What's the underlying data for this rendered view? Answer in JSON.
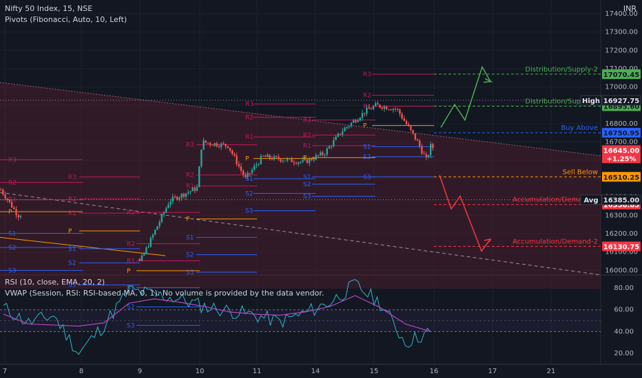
{
  "header": {
    "symbol_line": "Nifty 50 Index, 15, NSE",
    "pivots_line": "Pivots (Fibonacci, Auto, 10, Left)",
    "currency": "INR"
  },
  "rsi_panel": {
    "line1": "RSI (10, close, EMA, 20, 2)",
    "line2": "VWAP (Session, RSI: RSI-based MA, 0, 1): No volume is provided by the data vendor."
  },
  "chart_data": {
    "type": "line",
    "price_axis": {
      "ylim": [
        15975,
        17475
      ],
      "ticks": [
        "17400.00",
        "17300.00",
        "17200.00",
        "17100.00",
        "17000.00",
        "16900.00",
        "16800.00",
        "16700.00",
        "16600.00",
        "16500.00",
        "16400.00",
        "16300.00",
        "16200.00",
        "16100.00",
        "16000.00"
      ],
      "tick_values": [
        17400,
        17300,
        17200,
        17100,
        17000,
        16900,
        16800,
        16700,
        16600,
        16500,
        16400,
        16300,
        16200,
        16100,
        16000
      ]
    },
    "rsi_axis": {
      "ylim": [
        10,
        92
      ],
      "ticks": [
        "80.00",
        "60.00",
        "40.00",
        "20.00"
      ],
      "tick_values": [
        80,
        60,
        40,
        20
      ],
      "bands": [
        60,
        50,
        40
      ]
    },
    "time_axis": {
      "labels": [
        "7",
        "8",
        "9",
        "10",
        "11",
        "14",
        "15",
        "16",
        "17",
        "21"
      ]
    },
    "price_series": {
      "name": "Nifty 50 Index",
      "x": [
        "7",
        "8",
        "9",
        "10",
        "11",
        "14",
        "15",
        "16"
      ],
      "y": [
        16430,
        16310,
        16040,
        16690,
        16500,
        16620,
        16880,
        16645
      ]
    },
    "rsi_series": [
      62,
      48,
      55,
      20,
      46,
      78,
      74,
      70,
      63,
      59,
      55,
      49,
      57,
      67,
      83,
      66,
      30,
      40
    ],
    "rsi_ma_series": [
      56,
      47,
      46,
      45,
      48,
      66,
      70,
      67,
      63,
      58,
      56,
      55,
      58,
      63,
      73,
      62,
      47,
      40
    ],
    "pivot_labels": [
      "R3",
      "R2",
      "R1",
      "P",
      "S1",
      "S2",
      "S3"
    ],
    "scenario_levels": [
      {
        "label": "Distribution/Supply-2",
        "value": "17070.45",
        "color": "#4caf50"
      },
      {
        "label": "Distribution/Supply-1",
        "value": "16895.60",
        "color": "#4caf50"
      },
      {
        "label": "Buy Above",
        "value": "16750.95",
        "color": "#2962ff"
      },
      {
        "label": "Sell Below",
        "value": "16510.25",
        "color": "#ff9800"
      },
      {
        "label": "Accumulation/Demand-1",
        "value": "16358.85",
        "color": "#f23645"
      },
      {
        "label": "Accumulation/Demand-2",
        "value": "16130.75",
        "color": "#f23645"
      }
    ],
    "price_tags": [
      {
        "label": "High",
        "value": "16927.75",
        "color": "#131722"
      },
      {
        "label": "",
        "value": "16645.00",
        "change": "+1.25%",
        "color": "#f23645"
      },
      {
        "label": "Avg",
        "value": "16385.00",
        "color": "#131722"
      }
    ],
    "colors": {
      "up": "#26a69a",
      "down": "#ef5350",
      "rsi": "#2fb7c9",
      "rsi_ma": "#b946c8",
      "pivot_r": "#c2185b",
      "pivot_s": "#2962ff",
      "pivot_p": "#ff9800",
      "zone": "#5a2030"
    },
    "grid": true
  }
}
